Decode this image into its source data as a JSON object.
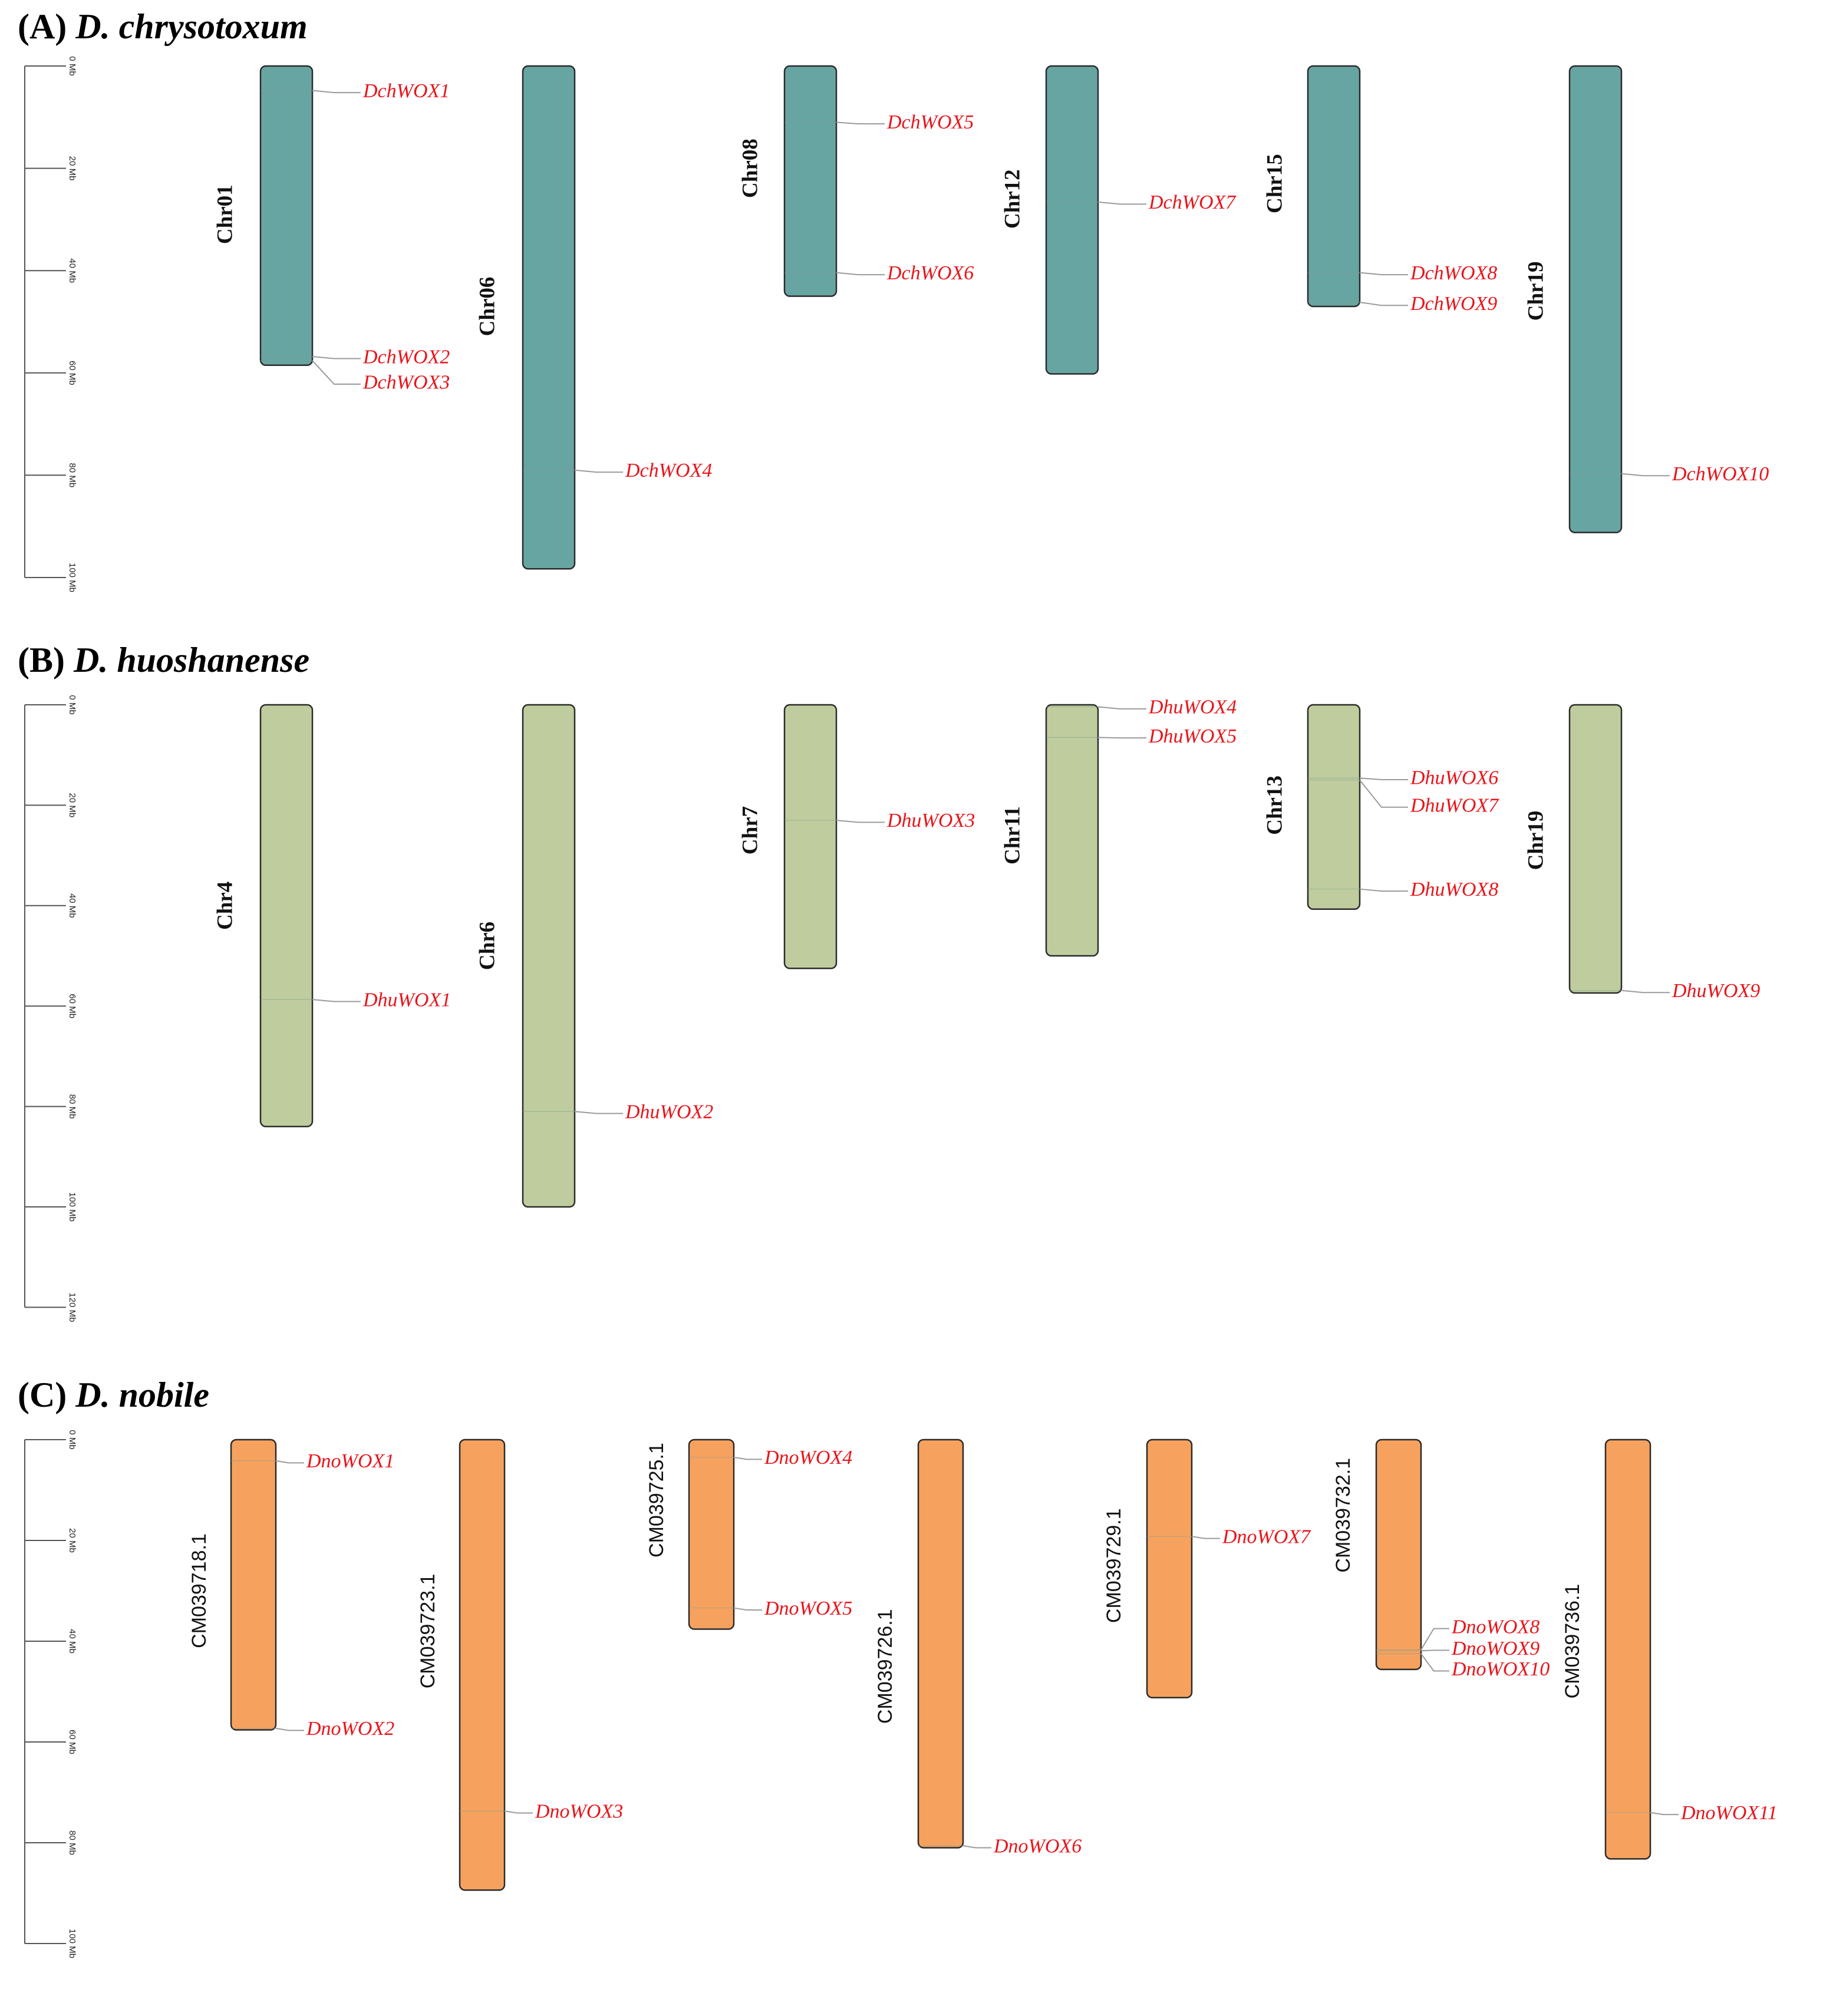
{
  "panels": [
    {
      "id": "A",
      "label": "(A)",
      "species": "D. chrysotoxum",
      "color": "#67a5a2",
      "axis_max_mb": 100,
      "axis_ticks": [
        "0 Mb",
        "20 Mb",
        "40 Mb",
        "60 Mb",
        "80 Mb",
        "100 Mb"
      ],
      "chromosomes": [
        {
          "name": "Chr01",
          "length_mb": 58.5,
          "genes": [
            {
              "name": "DchWOX1",
              "pos_mb": 4.8,
              "label_mb": 5.2
            },
            {
              "name": "DchWOX2",
              "pos_mb": 56.8,
              "label_mb": 57.2
            },
            {
              "name": "DchWOX3",
              "pos_mb": 57.6,
              "label_mb": 62.2
            }
          ]
        },
        {
          "name": "Chr06",
          "length_mb": 98.3,
          "genes": [
            {
              "name": "DchWOX4",
              "pos_mb": 79.0,
              "label_mb": 79.4
            }
          ]
        },
        {
          "name": "Chr08",
          "length_mb": 45.0,
          "genes": [
            {
              "name": "DchWOX5",
              "pos_mb": 11.0,
              "label_mb": 11.3
            },
            {
              "name": "DchWOX6",
              "pos_mb": 40.4,
              "label_mb": 40.8
            }
          ]
        },
        {
          "name": "Chr12",
          "length_mb": 60.2,
          "genes": [
            {
              "name": "DchWOX7",
              "pos_mb": 26.6,
              "label_mb": 27.0
            }
          ]
        },
        {
          "name": "Chr15",
          "length_mb": 47.0,
          "genes": [
            {
              "name": "DchWOX8",
              "pos_mb": 40.4,
              "label_mb": 40.8
            },
            {
              "name": "DchWOX9",
              "pos_mb": 46.2,
              "label_mb": 46.8
            }
          ]
        },
        {
          "name": "Chr19",
          "length_mb": 91.2,
          "genes": [
            {
              "name": "DchWOX10",
              "pos_mb": 79.7,
              "label_mb": 80.1
            }
          ]
        }
      ]
    },
    {
      "id": "B",
      "label": "(B)",
      "species": "D. huoshanense",
      "color": "#bfcd9e",
      "axis_max_mb": 120,
      "axis_ticks": [
        "0 Mb",
        "20 Mb",
        "40 Mb",
        "60 Mb",
        "80 Mb",
        "100 Mb",
        "120 Mb"
      ],
      "chromosomes": [
        {
          "name": "Chr4",
          "length_mb": 84.0,
          "genes": [
            {
              "name": "DhuWOX1",
              "pos_mb": 58.7,
              "label_mb": 59.1
            }
          ]
        },
        {
          "name": "Chr6",
          "length_mb": 100.0,
          "genes": [
            {
              "name": "DhuWOX2",
              "pos_mb": 81.0,
              "label_mb": 81.4
            }
          ]
        },
        {
          "name": "Chr7",
          "length_mb": 52.5,
          "genes": [
            {
              "name": "DhuWOX3",
              "pos_mb": 23.0,
              "label_mb": 23.4
            }
          ]
        },
        {
          "name": "Chr11",
          "length_mb": 50.0,
          "genes": [
            {
              "name": "DhuWOX4",
              "pos_mb": 0.4,
              "label_mb": 0.8
            },
            {
              "name": "DhuWOX5",
              "pos_mb": 6.5,
              "label_mb": 6.6
            }
          ]
        },
        {
          "name": "Chr13",
          "length_mb": 40.7,
          "genes": [
            {
              "name": "DhuWOX6",
              "pos_mb": 14.6,
              "label_mb": 14.9
            },
            {
              "name": "DhuWOX7",
              "pos_mb": 15.0,
              "label_mb": 20.4
            },
            {
              "name": "DhuWOX8",
              "pos_mb": 36.7,
              "label_mb": 37.1
            }
          ]
        },
        {
          "name": "Chr19",
          "length_mb": 57.4,
          "genes": [
            {
              "name": "DhuWOX9",
              "pos_mb": 56.9,
              "label_mb": 57.3
            }
          ]
        }
      ]
    },
    {
      "id": "C",
      "label": "(C)",
      "species": "D. nobile",
      "color": "#f6a25e",
      "axis_max_mb": 100,
      "axis_ticks": [
        "0 Mb",
        "20 Mb",
        "40 Mb",
        "60 Mb",
        "80 Mb",
        "100 Mb"
      ],
      "chromosomes": [
        {
          "name": "CM039718.1",
          "length_mb": 57.6,
          "genes": [
            {
              "name": "DnoWOX1",
              "pos_mb": 4.2,
              "label_mb": 4.6
            },
            {
              "name": "DnoWOX2",
              "pos_mb": 57.3,
              "label_mb": 57.7
            }
          ]
        },
        {
          "name": "CM039723.1",
          "length_mb": 89.4,
          "genes": [
            {
              "name": "DnoWOX3",
              "pos_mb": 73.7,
              "label_mb": 74.1
            }
          ]
        },
        {
          "name": "CM039725.1",
          "length_mb": 37.6,
          "genes": [
            {
              "name": "DnoWOX4",
              "pos_mb": 3.5,
              "label_mb": 3.9
            },
            {
              "name": "DnoWOX5",
              "pos_mb": 33.4,
              "label_mb": 33.8
            }
          ]
        },
        {
          "name": "CM039726.1",
          "length_mb": 81.0,
          "genes": [
            {
              "name": "DnoWOX6",
              "pos_mb": 80.6,
              "label_mb": 81.0
            }
          ]
        },
        {
          "name": "CM039729.1",
          "length_mb": 51.2,
          "genes": [
            {
              "name": "DnoWOX7",
              "pos_mb": 19.2,
              "label_mb": 19.6
            }
          ]
        },
        {
          "name": "CM039732.1",
          "length_mb": 45.6,
          "genes": [
            {
              "name": "DnoWOX8",
              "pos_mb": 41.7,
              "label_mb": 37.5
            },
            {
              "name": "DnoWOX9",
              "pos_mb": 41.9,
              "label_mb": 41.8
            },
            {
              "name": "DnoWOX10",
              "pos_mb": 42.5,
              "label_mb": 45.9
            }
          ]
        },
        {
          "name": "CM039736.1",
          "length_mb": 83.2,
          "genes": [
            {
              "name": "DnoWOX11",
              "pos_mb": 74.0,
              "label_mb": 74.4
            }
          ]
        }
      ]
    }
  ]
}
